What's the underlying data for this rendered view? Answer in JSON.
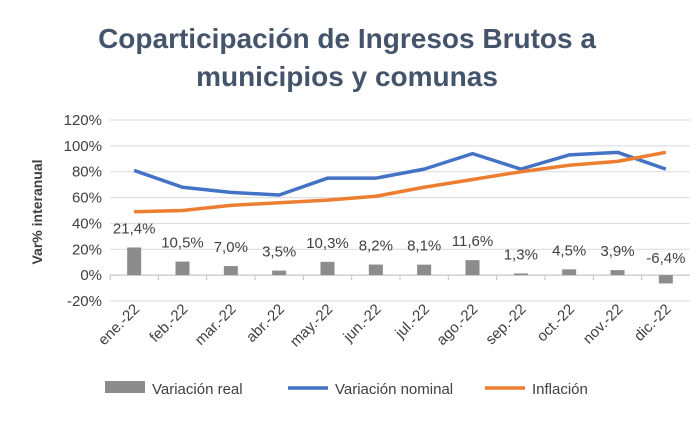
{
  "chart_data": {
    "type": "bar+line",
    "title_lines": [
      "Coparticipación de Ingresos Brutos a",
      "municipios y comunas"
    ],
    "ylabel": "Var% interanual",
    "xlabel": "",
    "ylim": [
      -20,
      120
    ],
    "yticks": [
      -20,
      0,
      20,
      40,
      60,
      80,
      100,
      120
    ],
    "ytick_labels": [
      "-20%",
      "0%",
      "20%",
      "40%",
      "60%",
      "80%",
      "100%",
      "120%"
    ],
    "grid": true,
    "legend_position": "bottom",
    "categories": [
      "ene.-22",
      "feb.-22",
      "mar.-22",
      "abr.-22",
      "may.-22",
      "jun.-22",
      "jul.-22",
      "ago.-22",
      "sep.-22",
      "oct.-22",
      "nov.-22",
      "dic.-22"
    ],
    "series": [
      {
        "name": "Variación real",
        "type": "bar",
        "color": "#8c8c8c",
        "values": [
          21.4,
          10.5,
          7.0,
          3.5,
          10.3,
          8.2,
          8.1,
          11.6,
          1.3,
          4.5,
          3.9,
          -6.4
        ],
        "labels": [
          "21,4%",
          "10,5%",
          "7,0%",
          "3,5%",
          "10,3%",
          "8,2%",
          "8,1%",
          "11,6%",
          "1,3%",
          "4,5%",
          "3,9%",
          "-6,4%"
        ]
      },
      {
        "name": "Variación nominal",
        "type": "line",
        "color": "#4472c4",
        "values": [
          81,
          68,
          64,
          62,
          75,
          75,
          82,
          94,
          82,
          93,
          95,
          82
        ]
      },
      {
        "name": "Inflación",
        "type": "line",
        "color": "#ed7d31",
        "values": [
          49,
          50,
          54,
          56,
          58,
          61,
          68,
          74,
          80,
          85,
          88,
          95
        ]
      }
    ]
  }
}
